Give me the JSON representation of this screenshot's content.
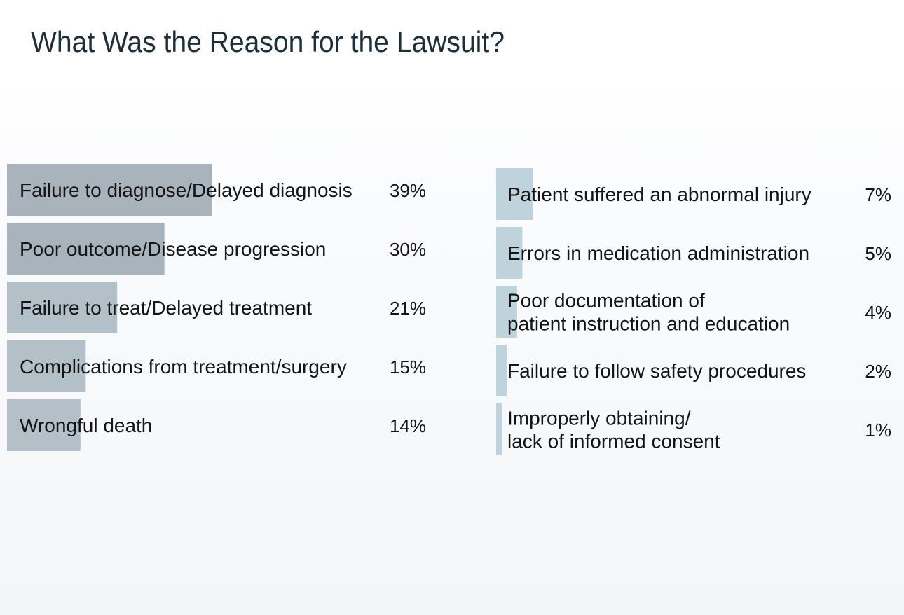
{
  "chart_data": {
    "type": "bar",
    "orientation": "horizontal",
    "title": "What Was the Reason for the Lawsuit?",
    "xlabel": "",
    "ylabel": "",
    "xlim": [
      0,
      100
    ],
    "unit": "%",
    "grid": false,
    "legend": "none",
    "categories": [
      "Failure to diagnose/Delayed diagnosis",
      "Poor outcome/Disease progression",
      "Failure to treat/Delayed treatment",
      "Complications from treatment/surgery",
      "Wrongful death",
      "Patient suffered an abnormal injury",
      "Errors in medication administration",
      "Poor documentation of patient instruction and education",
      "Failure to follow safety procedures",
      "Improperly obtaining/ lack of informed consent"
    ],
    "values": [
      39,
      30,
      21,
      15,
      14,
      7,
      5,
      4,
      2,
      1
    ],
    "value_labels": [
      "39%",
      "30%",
      "21%",
      "15%",
      "14%",
      "7%",
      "5%",
      "4%",
      "2%",
      "1%"
    ],
    "colors": [
      "#a8b3bb",
      "#a8b3bb",
      "#b3c0c8",
      "#b3c0c8",
      "#b3c0c8",
      "#bed3dc",
      "#bed3dc",
      "#bed3dc",
      "#bed3dc",
      "#bed3dc"
    ]
  }
}
